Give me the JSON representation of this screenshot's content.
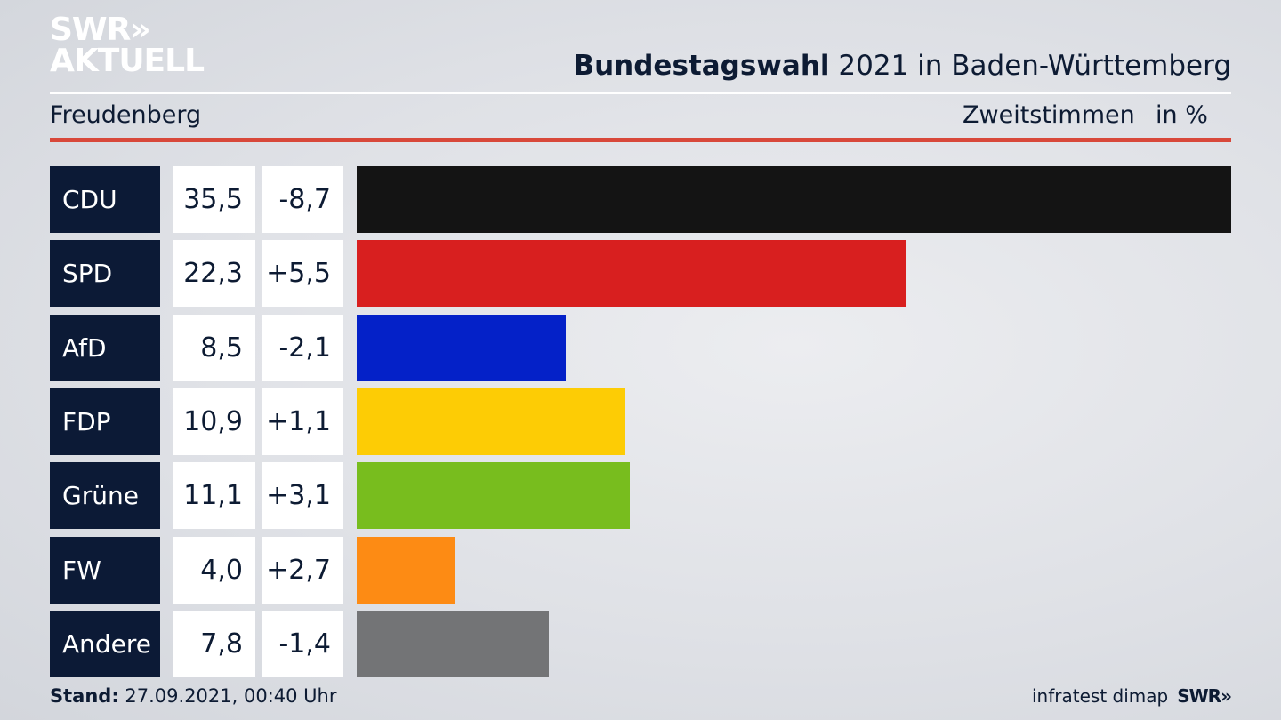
{
  "header": {
    "logo_line1": "SWR»",
    "logo_line2": "AKTUELL",
    "title_bold": "Bundestagswahl",
    "title_rest": " 2021 in Baden-Württemberg",
    "place": "Freudenberg",
    "measure": "Zweitstimmen",
    "unit": "in %"
  },
  "chart_data": {
    "type": "bar",
    "orientation": "horizontal",
    "categories": [
      "CDU",
      "SPD",
      "AfD",
      "FDP",
      "Grüne",
      "FW",
      "Andere"
    ],
    "values": [
      35.5,
      22.3,
      8.5,
      10.9,
      11.1,
      4.0,
      7.8
    ],
    "value_labels": [
      "35,5",
      "22,3",
      "8,5",
      "10,9",
      "11,1",
      "4,0",
      "7,8"
    ],
    "diff_labels": [
      "-8,7",
      "+5,5",
      "-2,1",
      "+1,1",
      "+3,1",
      "+2,7",
      "-1,4"
    ],
    "colors": [
      "#141414",
      "#d81f1f",
      "#0421c8",
      "#fdcc05",
      "#78bd1e",
      "#fd8b14",
      "#737476"
    ],
    "xlim": [
      0,
      35.5
    ]
  },
  "footer": {
    "stand_label": "Stand:",
    "stand_value": " 27.09.2021, 00:40 Uhr",
    "source": "infratest dimap",
    "brand": "SWR»"
  }
}
